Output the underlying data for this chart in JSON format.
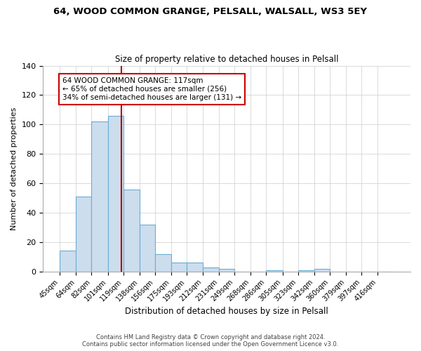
{
  "title": "64, WOOD COMMON GRANGE, PELSALL, WALSALL, WS3 5EY",
  "subtitle": "Size of property relative to detached houses in Pelsall",
  "xlabel": "Distribution of detached houses by size in Pelsall",
  "ylabel": "Number of detached properties",
  "bar_values": [
    14,
    51,
    102,
    106,
    56,
    32,
    12,
    6,
    6,
    3,
    2,
    0,
    0,
    1,
    0,
    1,
    2,
    0,
    0,
    0,
    0
  ],
  "bin_labels": [
    "45sqm",
    "64sqm",
    "82sqm",
    "101sqm",
    "119sqm",
    "138sqm",
    "156sqm",
    "175sqm",
    "193sqm",
    "212sqm",
    "231sqm",
    "249sqm",
    "268sqm",
    "286sqm",
    "305sqm",
    "323sqm",
    "342sqm",
    "360sqm",
    "379sqm",
    "397sqm",
    "416sqm"
  ],
  "bin_edges": [
    45,
    64,
    82,
    101,
    119,
    138,
    156,
    175,
    193,
    212,
    231,
    249,
    268,
    286,
    305,
    323,
    342,
    360,
    379,
    397,
    416
  ],
  "bar_color": "#ccdded",
  "bar_edge_color": "#6aadd5",
  "marker_value": 117,
  "marker_color": "#aa0000",
  "ylim": [
    0,
    140
  ],
  "yticks": [
    0,
    20,
    40,
    60,
    80,
    100,
    120,
    140
  ],
  "annotation_lines": [
    "64 WOOD COMMON GRANGE: 117sqm",
    "← 65% of detached houses are smaller (256)",
    "34% of semi-detached houses are larger (131) →"
  ],
  "footer_lines": [
    "Contains HM Land Registry data © Crown copyright and database right 2024.",
    "Contains public sector information licensed under the Open Government Licence v3.0."
  ],
  "background_color": "#ffffff",
  "grid_color": "#cccccc",
  "title_fontsize": 9.5,
  "subtitle_fontsize": 8.5,
  "ylabel_fontsize": 8,
  "xlabel_fontsize": 8.5,
  "tick_fontsize": 7,
  "ann_fontsize": 7.5,
  "footer_fontsize": 6
}
